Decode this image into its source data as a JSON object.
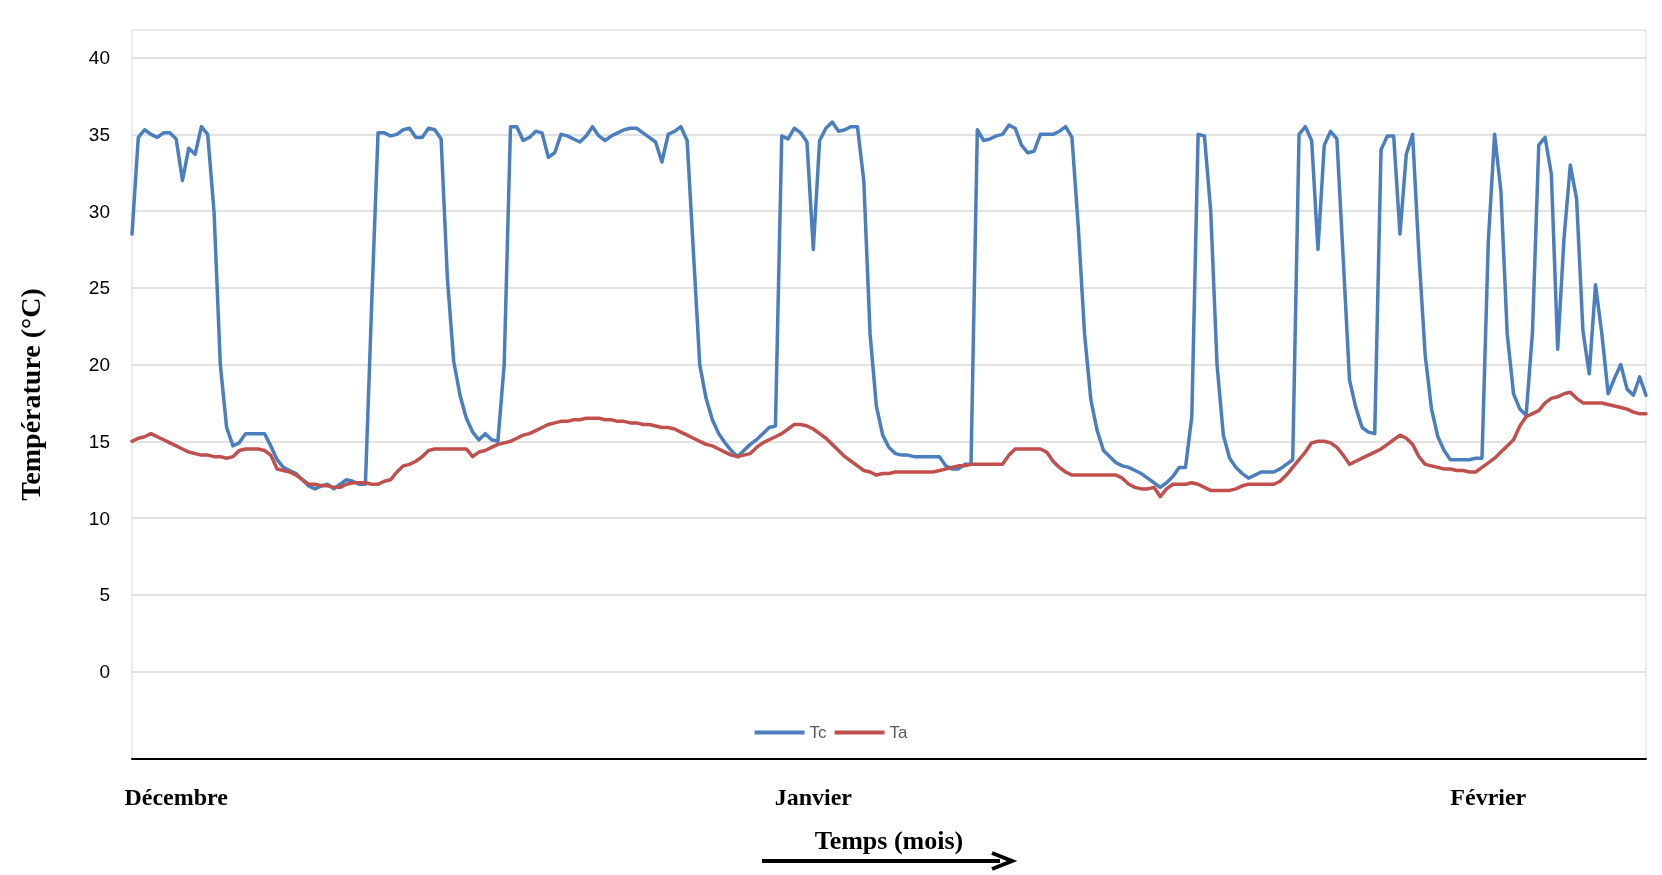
{
  "chart_data": {
    "type": "line",
    "xlabel": "Temps (mois)",
    "ylabel": "Température (°C)",
    "ylim": [
      -5.7,
      41.8
    ],
    "yticks": [
      0,
      5,
      10,
      15,
      20,
      25,
      30,
      35,
      40
    ],
    "categories": [
      null,
      null,
      null,
      null,
      null,
      null,
      null,
      "Décembre",
      null,
      null,
      null,
      null,
      null,
      null,
      null,
      null,
      null,
      null,
      null,
      null,
      null,
      null,
      null,
      null,
      null,
      null,
      null,
      null,
      null,
      null,
      null,
      null,
      null,
      null,
      null,
      null,
      null,
      null,
      null,
      null,
      null,
      null,
      null,
      null,
      null,
      null,
      null,
      null,
      null,
      null,
      null,
      null,
      null,
      null,
      null,
      null,
      null,
      null,
      null,
      null,
      null,
      null,
      null,
      null,
      null,
      null,
      null,
      null,
      null,
      null,
      null,
      null,
      null,
      null,
      null,
      null,
      null,
      null,
      null,
      null,
      null,
      null,
      null,
      null,
      null,
      null,
      null,
      null,
      null,
      null,
      null,
      null,
      null,
      null,
      null,
      null,
      null,
      null,
      null,
      null,
      null,
      null,
      null,
      null,
      null,
      null,
      null,
      null,
      "Janvier",
      null,
      null,
      null,
      null,
      null,
      null,
      null,
      null,
      null,
      null,
      null,
      null,
      null,
      null,
      null,
      null,
      null,
      null,
      null,
      null,
      null,
      null,
      null,
      null,
      null,
      null,
      null,
      null,
      null,
      null,
      null,
      null,
      null,
      null,
      null,
      null,
      null,
      null,
      null,
      null,
      null,
      null,
      null,
      null,
      null,
      null,
      null,
      null,
      null,
      null,
      null,
      null,
      null,
      null,
      null,
      null,
      null,
      null,
      null,
      null,
      null,
      null,
      null,
      null,
      null,
      null,
      null,
      null,
      null,
      null,
      null,
      null,
      null,
      null,
      null,
      null,
      null,
      null,
      null,
      null,
      null,
      null,
      null,
      null,
      null,
      null,
      null,
      null,
      null,
      null,
      null,
      null,
      null,
      null,
      null,
      null,
      null,
      null,
      null,
      null,
      null,
      null,
      null,
      null,
      null,
      null,
      "Février",
      null,
      null,
      null,
      null,
      null,
      null,
      null,
      null,
      null,
      null,
      null,
      null,
      null,
      null,
      null,
      null,
      null,
      null,
      null,
      null,
      null,
      null,
      null,
      null,
      null
    ],
    "grid": "y",
    "legend": "bottom",
    "marker": "none",
    "line_style": "solid",
    "series": [
      {
        "name": "Tc",
        "color": "#4a7ebf",
        "values": [
          28.5,
          34.8,
          35.3,
          35,
          34.8,
          35.1,
          35.1,
          34.7,
          32,
          34.1,
          33.7,
          35.5,
          35,
          30,
          20,
          15.9,
          14.7,
          14.9,
          15.5,
          15.5,
          15.5,
          15.5,
          14.7,
          13.8,
          13.3,
          13.1,
          12.9,
          12.5,
          12.1,
          11.9,
          12.1,
          12.2,
          11.9,
          12.2,
          12.5,
          12.4,
          12.2,
          12.2,
          24,
          35.1,
          35.1,
          34.9,
          35,
          35.3,
          35.4,
          34.8,
          34.8,
          35.4,
          35.3,
          34.7,
          25.6,
          20.2,
          18,
          16.5,
          15.6,
          15.1,
          15.5,
          15.1,
          15,
          20,
          35.5,
          35.5,
          34.6,
          34.8,
          35.2,
          35.1,
          33.5,
          33.8,
          35,
          34.9,
          34.7,
          34.5,
          34.9,
          35.5,
          34.9,
          34.6,
          34.9,
          35.1,
          35.3,
          35.4,
          35.4,
          35.1,
          34.8,
          34.5,
          33.2,
          35,
          35.2,
          35.5,
          34.6,
          27.3,
          20,
          17.8,
          16.4,
          15.5,
          14.9,
          14.4,
          14,
          14.4,
          14.8,
          15.1,
          15.5,
          15.9,
          16,
          34.9,
          34.7,
          35.4,
          35.1,
          34.5,
          27.5,
          34.6,
          35.4,
          35.8,
          35.2,
          35.3,
          35.5,
          35.5,
          32,
          22,
          17.3,
          15.4,
          14.6,
          14.2,
          14.1,
          14.1,
          14,
          14,
          14,
          14,
          14,
          13.4,
          13.2,
          13.2,
          13.5,
          13.5,
          35.3,
          34.6,
          34.7,
          34.9,
          35,
          35.6,
          35.4,
          34.3,
          33.8,
          33.9,
          35,
          35,
          35,
          35.2,
          35.5,
          34.8,
          29,
          22,
          17.7,
          15.7,
          14.4,
          14,
          13.6,
          13.4,
          13.3,
          13.1,
          12.9,
          12.6,
          12.3,
          12,
          12.3,
          12.7,
          13.3,
          13.3,
          16.6,
          35,
          34.9,
          30,
          20,
          15.4,
          13.9,
          13.3,
          12.9,
          12.6,
          12.8,
          13,
          13,
          13,
          13.2,
          13.5,
          13.8,
          35,
          35.5,
          34.6,
          27.5,
          34.3,
          35.2,
          34.7,
          26.9,
          19,
          17.2,
          15.9,
          15.6,
          15.5,
          34,
          34.9,
          34.9,
          28.5,
          33.7,
          35,
          27.2,
          20.6,
          17.1,
          15.3,
          14.4,
          13.8,
          13.8,
          13.8,
          13.8,
          13.9,
          13.9,
          28,
          35,
          31.3,
          22,
          18.1,
          17.1,
          16.7,
          22.1,
          34.3,
          34.8,
          32.4,
          21,
          28.2,
          33,
          30.8,
          22.2,
          19.4,
          25.2,
          22,
          18.1,
          19.1,
          20,
          18.4,
          18,
          19.2,
          18
        ]
      },
      {
        "name": "Ta",
        "color": "#c0504d",
        "values": [
          15,
          15.2,
          15.3,
          15.5,
          15.3,
          15.1,
          14.9,
          14.7,
          14.5,
          14.3,
          14.2,
          14.1,
          14.1,
          14,
          14,
          13.9,
          14,
          14.4,
          14.5,
          14.5,
          14.5,
          14.4,
          14.1,
          13.2,
          13.1,
          13,
          12.8,
          12.5,
          12.2,
          12.2,
          12.1,
          12.1,
          12,
          12,
          12.2,
          12.3,
          12.3,
          12.3,
          12.2,
          12.2,
          12.4,
          12.5,
          13,
          13.4,
          13.5,
          13.7,
          14,
          14.4,
          14.5,
          14.5,
          14.5,
          14.5,
          14.5,
          14.5,
          14,
          14.3,
          14.4,
          14.6,
          14.8,
          14.9,
          15,
          15.2,
          15.4,
          15.5,
          15.7,
          15.9,
          16.1,
          16.2,
          16.3,
          16.3,
          16.4,
          16.4,
          16.5,
          16.5,
          16.5,
          16.4,
          16.4,
          16.3,
          16.3,
          16.2,
          16.2,
          16.1,
          16.1,
          16,
          15.9,
          15.9,
          15.8,
          15.6,
          15.4,
          15.2,
          15,
          14.8,
          14.7,
          14.5,
          14.3,
          14.1,
          14,
          14.1,
          14.2,
          14.6,
          14.9,
          15.1,
          15.3,
          15.5,
          15.8,
          16.1,
          16.1,
          16,
          15.8,
          15.5,
          15.2,
          14.8,
          14.4,
          14,
          13.7,
          13.4,
          13.1,
          13,
          12.8,
          12.9,
          12.9,
          13,
          13,
          13,
          13,
          13,
          13,
          13,
          13.1,
          13.2,
          13.3,
          13.4,
          13.4,
          13.5,
          13.5,
          13.5,
          13.5,
          13.5,
          13.5,
          14.1,
          14.5,
          14.5,
          14.5,
          14.5,
          14.5,
          14.3,
          13.7,
          13.3,
          13,
          12.8,
          12.8,
          12.8,
          12.8,
          12.8,
          12.8,
          12.8,
          12.8,
          12.6,
          12.2,
          12,
          11.9,
          11.9,
          12,
          11.4,
          11.9,
          12.2,
          12.2,
          12.2,
          12.3,
          12.2,
          12,
          11.8,
          11.8,
          11.8,
          11.8,
          11.9,
          12.1,
          12.2,
          12.2,
          12.2,
          12.2,
          12.2,
          12.4,
          12.8,
          13.3,
          13.8,
          14.3,
          14.9,
          15,
          15,
          14.9,
          14.6,
          14.1,
          13.5,
          13.7,
          13.9,
          14.1,
          14.3,
          14.5,
          14.8,
          15.1,
          15.4,
          15.2,
          14.8,
          14,
          13.5,
          13.4,
          13.3,
          13.2,
          13.2,
          13.1,
          13.1,
          13,
          13,
          13.3,
          13.6,
          13.9,
          14.3,
          14.7,
          15.1,
          16,
          16.6,
          16.8,
          17,
          17.5,
          17.8,
          17.9,
          18.1,
          18.2,
          17.8,
          17.5,
          17.5,
          17.5,
          17.5,
          17.4,
          17.3,
          17.2,
          17.1,
          16.9,
          16.8,
          16.8
        ]
      }
    ]
  }
}
